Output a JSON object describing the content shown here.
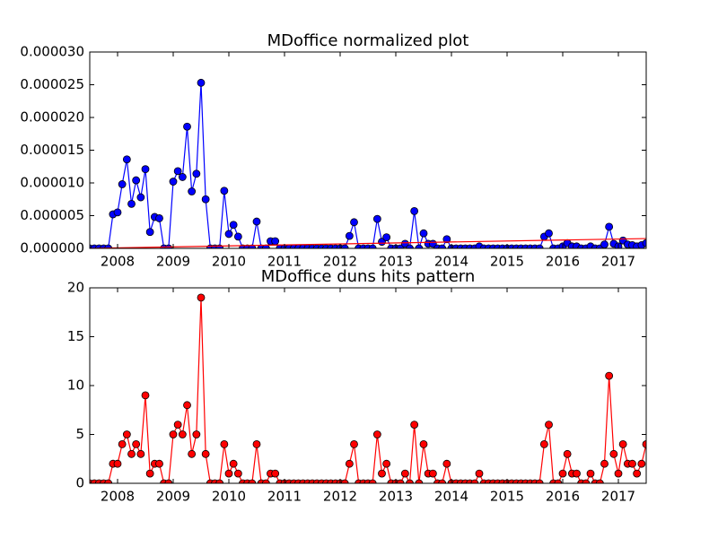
{
  "chart_data": [
    {
      "type": "line",
      "title": "MDoffice normalized plot",
      "x": [
        2007.5,
        2007.583,
        2007.667,
        2007.75,
        2007.833,
        2007.917,
        2008.0,
        2008.083,
        2008.167,
        2008.25,
        2008.333,
        2008.417,
        2008.5,
        2008.583,
        2008.667,
        2008.75,
        2008.833,
        2008.917,
        2009.0,
        2009.083,
        2009.167,
        2009.25,
        2009.333,
        2009.417,
        2009.5,
        2009.583,
        2009.667,
        2009.75,
        2009.833,
        2009.917,
        2010.0,
        2010.083,
        2010.167,
        2010.25,
        2010.333,
        2010.417,
        2010.5,
        2010.583,
        2010.667,
        2010.75,
        2010.833,
        2010.917,
        2011.0,
        2011.083,
        2011.167,
        2011.25,
        2011.333,
        2011.417,
        2011.5,
        2011.583,
        2011.667,
        2011.75,
        2011.833,
        2011.917,
        2012.0,
        2012.083,
        2012.167,
        2012.25,
        2012.333,
        2012.417,
        2012.5,
        2012.583,
        2012.667,
        2012.75,
        2012.833,
        2012.917,
        2013.0,
        2013.083,
        2013.167,
        2013.25,
        2013.333,
        2013.417,
        2013.5,
        2013.583,
        2013.667,
        2013.75,
        2013.833,
        2013.917,
        2014.0,
        2014.083,
        2014.167,
        2014.25,
        2014.333,
        2014.417,
        2014.5,
        2014.583,
        2014.667,
        2014.75,
        2014.833,
        2014.917,
        2015.0,
        2015.083,
        2015.167,
        2015.25,
        2015.333,
        2015.417,
        2015.5,
        2015.583,
        2015.667,
        2015.75,
        2015.833,
        2015.917,
        2016.0,
        2016.083,
        2016.167,
        2016.25,
        2016.333,
        2016.417,
        2016.5,
        2016.583,
        2016.667,
        2016.75,
        2016.833,
        2016.917,
        2017.0,
        2017.083,
        2017.167,
        2017.25,
        2017.333,
        2017.417,
        2017.5
      ],
      "series": [
        {
          "color": "#0000ff",
          "marker": "o",
          "values": [
            0,
            0,
            0,
            0,
            0,
            5.2e-06,
            5.5e-06,
            9.8e-06,
            1.36e-05,
            6.8e-06,
            1.04e-05,
            7.8e-06,
            1.21e-05,
            2.5e-06,
            4.8e-06,
            4.6e-06,
            0,
            0,
            1.02e-05,
            1.18e-05,
            1.09e-05,
            1.86e-05,
            8.7e-06,
            1.14e-05,
            2.53e-05,
            7.5e-06,
            0,
            0,
            0,
            8.8e-06,
            2.2e-06,
            3.6e-06,
            1.8e-06,
            0,
            0,
            0,
            4.1e-06,
            0,
            0,
            1.1e-06,
            1.1e-06,
            0,
            0,
            0,
            0,
            0,
            0,
            0,
            0,
            0,
            0,
            0,
            0,
            0,
            0,
            0,
            1.9e-06,
            4e-06,
            0,
            0,
            0,
            0,
            4.5e-06,
            1e-06,
            1.7e-06,
            0,
            0,
            0,
            7e-07,
            0,
            5.7e-06,
            0,
            2.3e-06,
            7e-07,
            7e-07,
            0,
            0,
            1.4e-06,
            0,
            0,
            0,
            0,
            0,
            0,
            3e-07,
            0,
            0,
            0,
            0,
            0,
            0,
            0,
            0,
            0,
            0,
            0,
            0,
            0,
            1.8e-06,
            2.3e-06,
            0,
            0,
            3e-07,
            8e-07,
            3e-07,
            3e-07,
            0,
            0,
            3e-07,
            0,
            0,
            6e-07,
            3.3e-06,
            7e-07,
            3e-07,
            1.2e-06,
            6e-07,
            5e-07,
            3e-07,
            5e-07,
            8e-07
          ]
        },
        {
          "color": "#ff0000",
          "x": [
            2007.5,
            2017.5
          ],
          "values": [
            0,
            1.5e-06
          ]
        }
      ],
      "xlim": [
        2007.5,
        2017.5
      ],
      "xticks": [
        2008,
        2009,
        2010,
        2011,
        2012,
        2013,
        2014,
        2015,
        2016,
        2017
      ],
      "ylim": [
        0,
        3e-05
      ],
      "yticks": [
        {
          "value": 0,
          "label": "0.000000"
        },
        {
          "value": 5e-06,
          "label": "0.000005"
        },
        {
          "value": 1e-05,
          "label": "0.000010"
        },
        {
          "value": 1.5e-05,
          "label": "0.000015"
        },
        {
          "value": 2e-05,
          "label": "0.000020"
        },
        {
          "value": 2.5e-05,
          "label": "0.000025"
        },
        {
          "value": 3e-05,
          "label": "0.000030"
        }
      ]
    },
    {
      "type": "line",
      "title": "MDoffice duns hits pattern",
      "x": [
        2007.5,
        2007.583,
        2007.667,
        2007.75,
        2007.833,
        2007.917,
        2008.0,
        2008.083,
        2008.167,
        2008.25,
        2008.333,
        2008.417,
        2008.5,
        2008.583,
        2008.667,
        2008.75,
        2008.833,
        2008.917,
        2009.0,
        2009.083,
        2009.167,
        2009.25,
        2009.333,
        2009.417,
        2009.5,
        2009.583,
        2009.667,
        2009.75,
        2009.833,
        2009.917,
        2010.0,
        2010.083,
        2010.167,
        2010.25,
        2010.333,
        2010.417,
        2010.5,
        2010.583,
        2010.667,
        2010.75,
        2010.833,
        2010.917,
        2011.0,
        2011.083,
        2011.167,
        2011.25,
        2011.333,
        2011.417,
        2011.5,
        2011.583,
        2011.667,
        2011.75,
        2011.833,
        2011.917,
        2012.0,
        2012.083,
        2012.167,
        2012.25,
        2012.333,
        2012.417,
        2012.5,
        2012.583,
        2012.667,
        2012.75,
        2012.833,
        2012.917,
        2013.0,
        2013.083,
        2013.167,
        2013.25,
        2013.333,
        2013.417,
        2013.5,
        2013.583,
        2013.667,
        2013.75,
        2013.833,
        2013.917,
        2014.0,
        2014.083,
        2014.167,
        2014.25,
        2014.333,
        2014.417,
        2014.5,
        2014.583,
        2014.667,
        2014.75,
        2014.833,
        2014.917,
        2015.0,
        2015.083,
        2015.167,
        2015.25,
        2015.333,
        2015.417,
        2015.5,
        2015.583,
        2015.667,
        2015.75,
        2015.833,
        2015.917,
        2016.0,
        2016.083,
        2016.167,
        2016.25,
        2016.333,
        2016.417,
        2016.5,
        2016.583,
        2016.667,
        2016.75,
        2016.833,
        2016.917,
        2017.0,
        2017.083,
        2017.167,
        2017.25,
        2017.333,
        2017.417,
        2017.5
      ],
      "series": [
        {
          "color": "#ff0000",
          "marker": "o",
          "values": [
            0,
            0,
            0,
            0,
            0,
            2,
            2,
            4,
            5,
            3,
            4,
            3,
            9,
            1,
            2,
            2,
            0,
            0,
            5,
            6,
            5,
            8,
            3,
            5,
            19,
            3,
            0,
            0,
            0,
            4,
            1,
            2,
            1,
            0,
            0,
            0,
            4,
            0,
            0,
            1,
            1,
            0,
            0,
            0,
            0,
            0,
            0,
            0,
            0,
            0,
            0,
            0,
            0,
            0,
            0,
            0,
            2,
            4,
            0,
            0,
            0,
            0,
            5,
            1,
            2,
            0,
            0,
            0,
            1,
            0,
            6,
            0,
            4,
            1,
            1,
            0,
            0,
            2,
            0,
            0,
            0,
            0,
            0,
            0,
            1,
            0,
            0,
            0,
            0,
            0,
            0,
            0,
            0,
            0,
            0,
            0,
            0,
            0,
            4,
            6,
            0,
            0,
            1,
            3,
            1,
            1,
            0,
            0,
            1,
            0,
            0,
            2,
            11,
            3,
            1,
            4,
            2,
            2,
            1,
            2,
            4
          ]
        }
      ],
      "xlim": [
        2007.5,
        2017.5
      ],
      "xticks": [
        2008,
        2009,
        2010,
        2011,
        2012,
        2013,
        2014,
        2015,
        2016,
        2017
      ],
      "ylim": [
        0,
        20
      ],
      "yticks": [
        0,
        5,
        10,
        15,
        20
      ]
    }
  ]
}
